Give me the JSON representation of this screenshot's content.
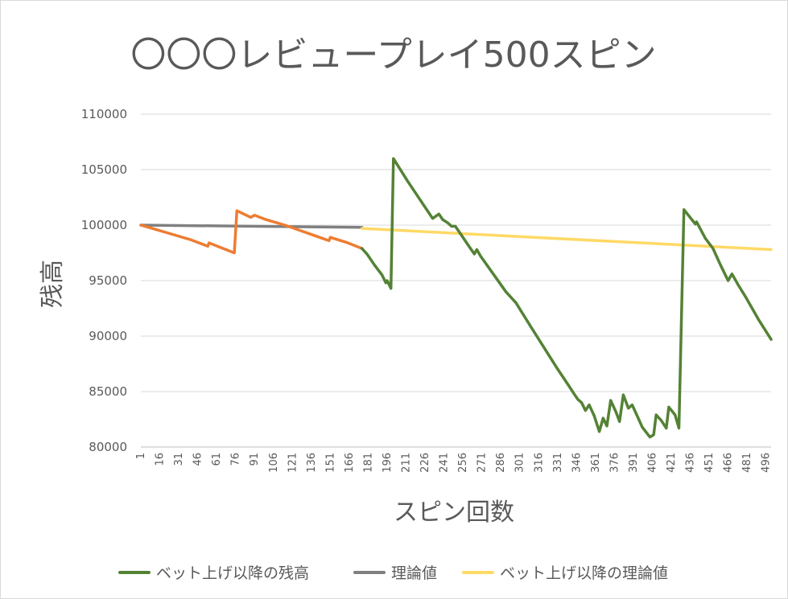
{
  "chart_data": {
    "type": "line",
    "title": "〇〇〇レビュープレイ500スピン",
    "xlabel": "スピン回数",
    "ylabel": "残高",
    "ylim": [
      80000,
      110000
    ],
    "yticks": [
      80000,
      85000,
      90000,
      95000,
      100000,
      105000,
      110000
    ],
    "xlim": [
      1,
      500
    ],
    "xticks": [
      1,
      16,
      31,
      46,
      61,
      76,
      91,
      106,
      121,
      136,
      151,
      166,
      181,
      196,
      211,
      226,
      241,
      256,
      271,
      286,
      301,
      316,
      331,
      346,
      361,
      376,
      391,
      406,
      421,
      436,
      451,
      466,
      481,
      496
    ],
    "grid": true,
    "legend_position": "bottom",
    "series": [
      {
        "name": "",
        "color": "#ed7d31",
        "legend": false,
        "points": [
          [
            1,
            100000
          ],
          [
            10,
            99700
          ],
          [
            25,
            99200
          ],
          [
            40,
            98700
          ],
          [
            54,
            98100
          ],
          [
            55,
            98400
          ],
          [
            75,
            97500
          ],
          [
            77,
            101300
          ],
          [
            88,
            100700
          ],
          [
            91,
            100900
          ],
          [
            100,
            100500
          ],
          [
            115,
            100000
          ],
          [
            125,
            99600
          ],
          [
            140,
            99000
          ],
          [
            150,
            98600
          ],
          [
            151,
            98900
          ],
          [
            165,
            98400
          ],
          [
            176,
            97900
          ]
        ]
      },
      {
        "name": "ベット上げ以降の残高",
        "color": "#548235",
        "legend": true,
        "points": [
          [
            176,
            97900
          ],
          [
            180,
            97400
          ],
          [
            186,
            96400
          ],
          [
            192,
            95500
          ],
          [
            195,
            94800
          ],
          [
            196,
            95000
          ],
          [
            199,
            94300
          ],
          [
            201,
            106000
          ],
          [
            212,
            104000
          ],
          [
            222,
            102300
          ],
          [
            232,
            100600
          ],
          [
            237,
            101000
          ],
          [
            240,
            100500
          ],
          [
            244,
            100200
          ],
          [
            247,
            99900
          ],
          [
            250,
            99900
          ],
          [
            262,
            97900
          ],
          [
            265,
            97400
          ],
          [
            267,
            97800
          ],
          [
            270,
            97200
          ],
          [
            280,
            95600
          ],
          [
            290,
            94000
          ],
          [
            298,
            93000
          ],
          [
            310,
            90800
          ],
          [
            320,
            89000
          ],
          [
            330,
            87200
          ],
          [
            340,
            85500
          ],
          [
            344,
            84800
          ],
          [
            347,
            84300
          ],
          [
            350,
            84000
          ],
          [
            353,
            83300
          ],
          [
            356,
            83800
          ],
          [
            360,
            82800
          ],
          [
            364,
            81400
          ],
          [
            367,
            82600
          ],
          [
            370,
            81900
          ],
          [
            373,
            84200
          ],
          [
            377,
            83200
          ],
          [
            380,
            82300
          ],
          [
            383,
            84700
          ],
          [
            387,
            83500
          ],
          [
            390,
            83800
          ],
          [
            394,
            82800
          ],
          [
            398,
            81800
          ],
          [
            404,
            80900
          ],
          [
            407,
            81100
          ],
          [
            409,
            82900
          ],
          [
            413,
            82400
          ],
          [
            417,
            81700
          ],
          [
            419,
            83600
          ],
          [
            424,
            82900
          ],
          [
            427,
            81700
          ],
          [
            431,
            101400
          ],
          [
            440,
            100100
          ],
          [
            441,
            100300
          ],
          [
            448,
            98800
          ],
          [
            454,
            97900
          ],
          [
            460,
            96400
          ],
          [
            466,
            95000
          ],
          [
            469,
            95600
          ],
          [
            474,
            94600
          ],
          [
            480,
            93500
          ],
          [
            490,
            91500
          ],
          [
            500,
            89700
          ]
        ]
      },
      {
        "name": "理論値",
        "color": "#808080",
        "legend": true,
        "points": [
          [
            1,
            100000
          ],
          [
            176,
            99800
          ]
        ]
      },
      {
        "name": "ベット上げ以降の理論値",
        "color": "#ffd966",
        "legend": true,
        "points": [
          [
            176,
            99700
          ],
          [
            500,
            97800
          ]
        ]
      }
    ]
  }
}
